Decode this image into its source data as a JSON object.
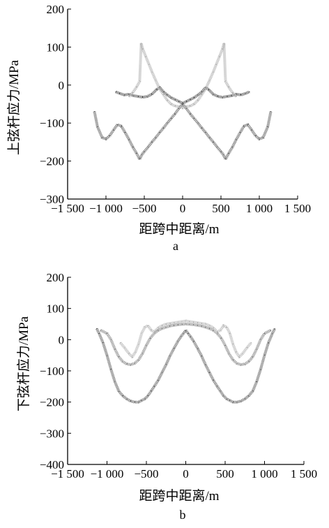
{
  "chart_data": [
    {
      "type": "line",
      "panel_label": "a",
      "xlabel": "距跨中距离/m",
      "ylabel": "上弦杆应力/MPa",
      "xlim": [
        -1500,
        1500
      ],
      "ylim": [
        -300,
        200
      ],
      "xticks": [
        -1500,
        -1000,
        -500,
        0,
        500,
        1000,
        1500
      ],
      "xtick_labels": [
        "−1 500",
        "−1 000",
        "−500",
        "0",
        "500",
        "1 000",
        "1 500"
      ],
      "yticks": [
        200,
        100,
        0,
        -100,
        -200,
        -300
      ],
      "ytick_labels": [
        "200",
        "100",
        "0",
        "−100",
        "−200",
        "−300"
      ],
      "series": [
        {
          "color": "#6e6e6e",
          "x": [
            -1150,
            -1110,
            -1050,
            -1000,
            -950,
            -900,
            -850,
            -800,
            -750,
            -700,
            -650,
            -600,
            -560,
            -530,
            -500,
            -450,
            -400,
            -350,
            -300,
            -250,
            -200,
            -150,
            -100,
            -50,
            0,
            50,
            100,
            150,
            200,
            250,
            300,
            350,
            400,
            450,
            500,
            530,
            560,
            600,
            650,
            700,
            750,
            800,
            850,
            900,
            950,
            1000,
            1050,
            1110,
            1150
          ],
          "y": [
            -70,
            -110,
            -138,
            -142,
            -133,
            -118,
            -104,
            -108,
            -125,
            -143,
            -163,
            -180,
            -195,
            -183,
            -175,
            -163,
            -150,
            -138,
            -125,
            -113,
            -100,
            -88,
            -76,
            -62,
            -50,
            -62,
            -76,
            -88,
            -100,
            -113,
            -125,
            -138,
            -150,
            -163,
            -175,
            -183,
            -195,
            -180,
            -163,
            -143,
            -125,
            -108,
            -104,
            -118,
            -133,
            -142,
            -138,
            -110,
            -70
          ]
        },
        {
          "color": "#5a5a5a",
          "x": [
            -870,
            -820,
            -760,
            -700,
            -640,
            -580,
            -520,
            -460,
            -400,
            -340,
            -300,
            -250,
            -200,
            -150,
            -100,
            -50,
            0,
            50,
            100,
            150,
            200,
            250,
            300,
            340,
            400,
            460,
            520,
            580,
            640,
            700,
            760,
            820,
            870
          ],
          "y": [
            -18,
            -22,
            -26,
            -24,
            -28,
            -30,
            -32,
            -30,
            -24,
            -12,
            -6,
            -18,
            -26,
            -33,
            -38,
            -43,
            -48,
            -43,
            -38,
            -33,
            -26,
            -18,
            -6,
            -12,
            -24,
            -30,
            -32,
            -30,
            -28,
            -24,
            -26,
            -22,
            -18
          ]
        },
        {
          "color": "#b4b4b4",
          "x": [
            -700,
            -650,
            -600,
            -560,
            -540,
            -520,
            -480,
            -440,
            -400,
            -350,
            -300,
            -250,
            -200,
            -150,
            -100,
            -50,
            0,
            50,
            100,
            150,
            200,
            250,
            300,
            350,
            400,
            440,
            480,
            520,
            540,
            560,
            600,
            650,
            700
          ],
          "y": [
            -30,
            -20,
            -5,
            10,
            110,
            95,
            75,
            55,
            35,
            12,
            -10,
            -25,
            -40,
            -50,
            -55,
            -57,
            -60,
            -57,
            -55,
            -50,
            -40,
            -25,
            -10,
            12,
            35,
            55,
            75,
            95,
            110,
            10,
            -5,
            -20,
            -30
          ]
        }
      ]
    },
    {
      "type": "line",
      "panel_label": "b",
      "xlabel": "距跨中距离/m",
      "ylabel": "下弦杆应力/MPa",
      "xlim": [
        -1500,
        1500
      ],
      "ylim": [
        -400,
        200
      ],
      "xticks": [
        -1500,
        -1000,
        -500,
        0,
        500,
        1000,
        1500
      ],
      "xtick_labels": [
        "−1 500",
        "−1 000",
        "−500",
        "0",
        "500",
        "1 000",
        "1 500"
      ],
      "yticks": [
        200,
        100,
        0,
        -100,
        -200,
        -300,
        -400
      ],
      "ytick_labels": [
        "200",
        "100",
        "0",
        "−100",
        "−200",
        "−300",
        "−400"
      ],
      "series": [
        {
          "color": "#6e6e6e",
          "x": [
            -1130,
            -1100,
            -1050,
            -1000,
            -950,
            -900,
            -850,
            -800,
            -750,
            -700,
            -650,
            -600,
            -560,
            -520,
            -480,
            -440,
            -400,
            -350,
            -300,
            -250,
            -200,
            -150,
            -100,
            -60,
            -30,
            0,
            30,
            60,
            100,
            150,
            200,
            250,
            300,
            350,
            400,
            440,
            480,
            520,
            560,
            600,
            650,
            700,
            750,
            800,
            850,
            900,
            950,
            1000,
            1050,
            1100,
            1130
          ],
          "y": [
            35,
            20,
            -10,
            -50,
            -95,
            -135,
            -165,
            -180,
            -190,
            -197,
            -200,
            -200,
            -195,
            -190,
            -180,
            -165,
            -150,
            -130,
            -105,
            -80,
            -52,
            -28,
            -5,
            10,
            20,
            30,
            20,
            10,
            -5,
            -28,
            -52,
            -80,
            -105,
            -130,
            -150,
            -165,
            -180,
            -190,
            -195,
            -200,
            -200,
            -197,
            -190,
            -180,
            -165,
            -135,
            -95,
            -50,
            -10,
            20,
            35
          ]
        },
        {
          "color": "#8c8c8c",
          "x": [
            -1080,
            -1000,
            -950,
            -900,
            -850,
            -800,
            -750,
            -700,
            -650,
            -600,
            -550,
            -500,
            -450,
            -400,
            -350,
            -300,
            -250,
            -200,
            -150,
            -100,
            -50,
            0,
            50,
            100,
            150,
            200,
            250,
            300,
            350,
            400,
            450,
            500,
            550,
            600,
            650,
            700,
            750,
            800,
            850,
            900,
            950,
            1000,
            1080
          ],
          "y": [
            30,
            20,
            0,
            -30,
            -55,
            -70,
            -78,
            -80,
            -76,
            -65,
            -45,
            -18,
            5,
            20,
            30,
            36,
            40,
            44,
            46,
            48,
            49,
            50,
            49,
            48,
            46,
            44,
            40,
            36,
            30,
            20,
            5,
            -18,
            -45,
            -65,
            -76,
            -80,
            -78,
            -70,
            -55,
            -30,
            0,
            20,
            30
          ]
        },
        {
          "color": "#b9b9b9",
          "x": [
            -830,
            -780,
            -720,
            -680,
            -640,
            -600,
            -560,
            -520,
            -480,
            -440,
            -400,
            -350,
            -300,
            -250,
            -200,
            -150,
            -100,
            -50,
            0,
            50,
            100,
            150,
            200,
            250,
            300,
            350,
            400,
            440,
            480,
            520,
            560,
            600,
            640,
            680,
            720,
            780,
            830
          ],
          "y": [
            -10,
            -25,
            -45,
            -55,
            -40,
            -15,
            20,
            40,
            45,
            30,
            25,
            38,
            45,
            50,
            52,
            54,
            56,
            58,
            60,
            58,
            56,
            54,
            52,
            50,
            45,
            38,
            25,
            30,
            45,
            40,
            20,
            -15,
            -40,
            -55,
            -45,
            -25,
            -10
          ]
        }
      ]
    }
  ]
}
